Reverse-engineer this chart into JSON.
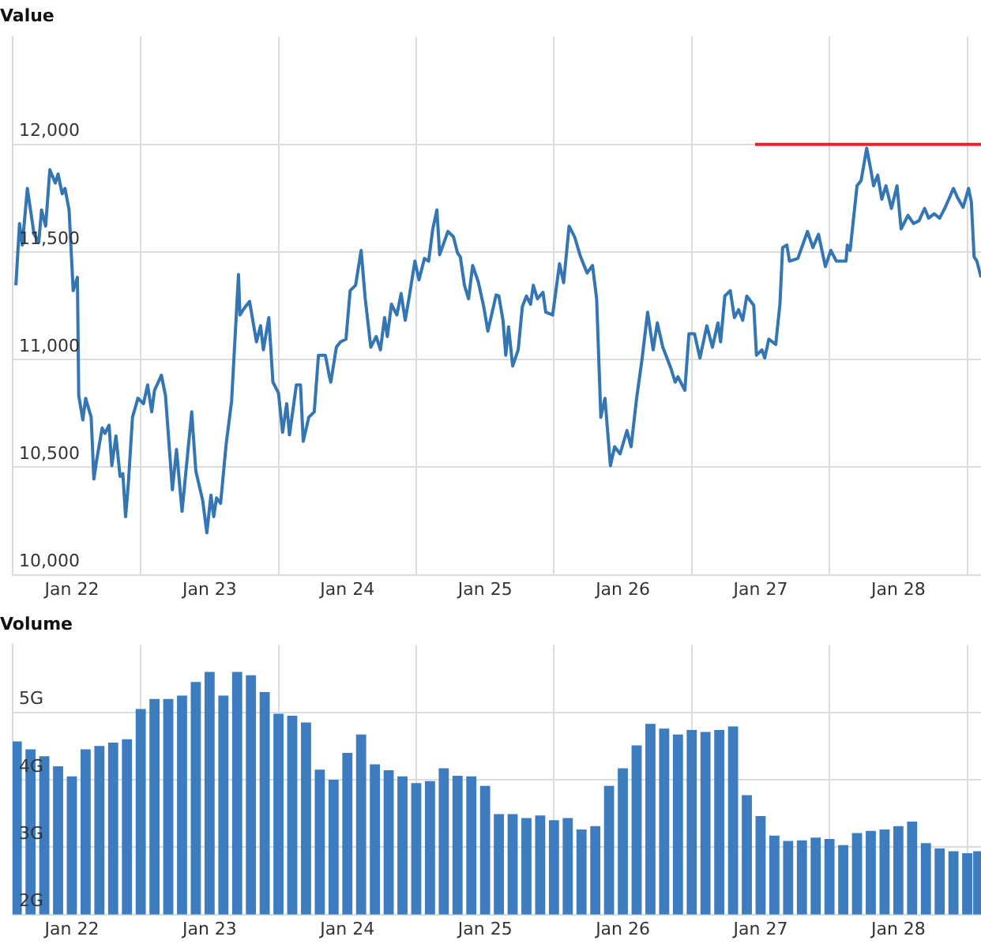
{
  "chart_data": [
    {
      "type": "line",
      "title": "Value",
      "xlim": [
        "--01-22T01:41",
        "--01-29T02:24"
      ],
      "ylim": [
        10000,
        12500
      ],
      "xticks": [
        {
          "value": "--01-22T12:00",
          "label": "Jan 22"
        },
        {
          "value": "--01-23",
          "label": null
        },
        {
          "value": "--01-23T12:00",
          "label": "Jan 23"
        },
        {
          "value": "--01-24",
          "label": null
        },
        {
          "value": "--01-24T12:00",
          "label": "Jan 24"
        },
        {
          "value": "--01-25",
          "label": null
        },
        {
          "value": "--01-25T12:00",
          "label": "Jan 25"
        },
        {
          "value": "--01-26",
          "label": null
        },
        {
          "value": "--01-26T12:00",
          "label": "Jan 26"
        },
        {
          "value": "--01-27",
          "label": null
        },
        {
          "value": "--01-27T12:00",
          "label": "Jan 27"
        },
        {
          "value": "--01-28",
          "label": null
        },
        {
          "value": "--01-28T12:00",
          "label": "Jan 28"
        },
        {
          "value": "--01-29",
          "label": null
        }
      ],
      "yticks": [
        {
          "value": 10000,
          "label": "10,000"
        },
        {
          "value": 10500,
          "label": "10,500"
        },
        {
          "value": 11000,
          "label": "11,000"
        },
        {
          "value": 11500,
          "label": "11,500"
        },
        {
          "value": 12000,
          "label": "12,000"
        }
      ],
      "grid": true,
      "legend": false,
      "marker": "none",
      "line_style": "solid",
      "series": [
        {
          "color": "#3475b3",
          "x": [
            "--01-22T02:15",
            "--01-22T02:53",
            "--01-22T03:22",
            "--01-22T04:15",
            "--01-22T05:25",
            "--01-22T06:14",
            "--01-22T06:43",
            "--01-22T07:26",
            "--01-22T08:10",
            "--01-22T09:07",
            "--01-22T09:36",
            "--01-22T10:19",
            "--01-22T10:48",
            "--01-22T11:31",
            "--01-22T12:14",
            "--01-22T12:58",
            "--01-22T13:12",
            "--01-22T13:55",
            "--01-22T14:24",
            "--01-22T15:22",
            "--01-22T15:50",
            "--01-22T16:19",
            "--01-22T17:17",
            "--01-22T17:46",
            "--01-22T18:29",
            "--01-22T18:58",
            "--01-22T19:41",
            "--01-22T20:24",
            "--01-22T20:53",
            "--01-22T21:22",
            "--01-22T21:50",
            "--01-22T22:34",
            "--01-22T23:31",
            "--01-23T00:29",
            "--01-23T01:12",
            "--01-23T01:55",
            "--01-23T02:24",
            "--01-23T03:36",
            "--01-23T04:19",
            "--01-23T05:31",
            "--01-23T06:14",
            "--01-23T07:12",
            "--01-23T08:53",
            "--01-23T09:36",
            "--01-23T10:48",
            "--01-23T11:31",
            "--01-23T12:14",
            "--01-23T12:43",
            "--01-23T13:12",
            "--01-23T13:55",
            "--01-23T14:53",
            "--01-23T15:50",
            "--01-23T17:02",
            "--01-23T17:17",
            "--01-23T18:00",
            "--01-23T18:58",
            "--01-23T20:10",
            "--01-23T20:53",
            "--01-23T21:22",
            "--01-23T22:19",
            "--01-23T23:02",
            "--01-24T00:00",
            "--01-24T00:43",
            "--01-24T01:26",
            "--01-24T01:55",
            "--01-24T03:07",
            "--01-24T03:50",
            "--01-24T04:19",
            "--01-24T05:17",
            "--01-24T06:14",
            "--01-24T06:58",
            "--01-24T08:10",
            "--01-24T08:53",
            "--01-24T09:07",
            "--01-24T10:05",
            "--01-24T10:48",
            "--01-24T11:46",
            "--01-24T12:29",
            "--01-24T13:26",
            "--01-24T14:24",
            "--01-24T15:07",
            "--01-24T16:05",
            "--01-24T17:02",
            "--01-24T17:46",
            "--01-24T18:29",
            "--01-24T18:58",
            "--01-24T19:41",
            "--01-24T20:38",
            "--01-24T21:22",
            "--01-24T22:05",
            "--01-24T22:48",
            "--01-24T23:46",
            "--01-25T00:29",
            "--01-25T01:26",
            "--01-25T02:10",
            "--01-25T02:53",
            "--01-25T03:36",
            "--01-25T04:05",
            "--01-25T05:31",
            "--01-25T06:29",
            "--01-25T07:12",
            "--01-25T07:41",
            "--01-25T08:24",
            "--01-25T09:07",
            "--01-25T09:50",
            "--01-25T10:48",
            "--01-25T11:46",
            "--01-25T12:29",
            "--01-25T13:55",
            "--01-25T14:24",
            "--01-25T15:07",
            "--01-25T15:36",
            "--01-25T16:05",
            "--01-25T16:48",
            "--01-25T17:46",
            "--01-25T18:29",
            "--01-25T19:12",
            "--01-25T19:55",
            "--01-25T20:24",
            "--01-25T21:07",
            "--01-25T22:05",
            "--01-25T22:34",
            "--01-25T23:46",
            "--01-26T00:58",
            "--01-26T01:41",
            "--01-26T02:38",
            "--01-26T03:36",
            "--01-26T04:34",
            "--01-26T05:46",
            "--01-26T06:43",
            "--01-26T07:26",
            "--01-26T08:10",
            "--01-26T08:53",
            "--01-26T09:50",
            "--01-26T10:34",
            "--01-26T11:31",
            "--01-26T12:43",
            "--01-26T13:26",
            "--01-26T14:24",
            "--01-26T15:22",
            "--01-26T16:19",
            "--01-26T17:17",
            "--01-26T18:00",
            "--01-26T18:58",
            "--01-26T20:24",
            "--01-26T21:07",
            "--01-26T21:36",
            "--01-26T22:48",
            "--01-26T23:31",
            "--01-27T00:29",
            "--01-27T01:26",
            "--01-27T02:38",
            "--01-27T03:36",
            "--01-27T04:34",
            "--01-27T05:02",
            "--01-27T05:46",
            "--01-27T06:43",
            "--01-27T07:26",
            "--01-27T08:10",
            "--01-27T08:53",
            "--01-27T09:36",
            "--01-27T10:48",
            "--01-27T11:17",
            "--01-27T12:14",
            "--01-27T12:43",
            "--01-27T13:26",
            "--01-27T14:38",
            "--01-27T15:22",
            "--01-27T15:50",
            "--01-27T16:34",
            "--01-27T17:02",
            "--01-27T18:29",
            "--01-27T20:10",
            "--01-27T21:07",
            "--01-27T22:05",
            "--01-27T23:17",
            "--01-28T00:14",
            "--01-28T01:12",
            "--01-28T02:53",
            "--01-28T03:07",
            "--01-28T03:36",
            "--01-28T04:48",
            "--01-28T05:31",
            "--01-28T06:29",
            "--01-28T07:12",
            "--01-28T07:41",
            "--01-28T08:24",
            "--01-28T09:07",
            "--01-28T09:50",
            "--01-28T10:48",
            "--01-28T11:46",
            "--01-28T12:29",
            "--01-28T13:41",
            "--01-28T14:38",
            "--01-28T15:36",
            "--01-28T16:34",
            "--01-28T17:17",
            "--01-28T18:14",
            "--01-28T19:12",
            "--01-28T20:10",
            "--01-28T21:36",
            "--01-28T22:19",
            "--01-28T23:17",
            "--01-29T00:14",
            "--01-29T00:43",
            "--01-29T01:12",
            "--01-29T01:41",
            "--01-29T02:24"
          ],
          "values": [
            11345,
            11632,
            11532,
            11795,
            11582,
            11545,
            11695,
            11620,
            11882,
            11820,
            11862,
            11770,
            11795,
            11695,
            11320,
            11382,
            10832,
            10720,
            10820,
            10732,
            10445,
            10532,
            10682,
            10657,
            10695,
            10507,
            10645,
            10457,
            10470,
            10270,
            10420,
            10732,
            10820,
            10795,
            10882,
            10757,
            10857,
            10927,
            10832,
            10395,
            10582,
            10295,
            10757,
            10482,
            10345,
            10195,
            10370,
            10270,
            10357,
            10332,
            10607,
            10807,
            11395,
            11207,
            11237,
            11270,
            11082,
            11157,
            11045,
            11195,
            10895,
            10845,
            10662,
            10795,
            10650,
            10882,
            10882,
            10620,
            10732,
            10757,
            11020,
            11020,
            10920,
            10895,
            11057,
            11082,
            11095,
            11320,
            11345,
            11507,
            11282,
            11057,
            11107,
            11045,
            11195,
            11107,
            11257,
            11207,
            11307,
            11182,
            11295,
            11457,
            11370,
            11470,
            11457,
            11607,
            11695,
            11487,
            11595,
            11570,
            11495,
            11477,
            11345,
            11282,
            11437,
            11362,
            11245,
            11132,
            11300,
            11295,
            11182,
            11020,
            11152,
            10970,
            11045,
            11245,
            11295,
            11257,
            11345,
            11282,
            11312,
            11220,
            11207,
            11445,
            11357,
            11620,
            11570,
            11482,
            11402,
            11437,
            11282,
            10732,
            10820,
            10507,
            10595,
            10562,
            10670,
            10595,
            10820,
            11007,
            11220,
            11045,
            11170,
            11057,
            10957,
            10895,
            10920,
            10857,
            11120,
            11120,
            11007,
            11157,
            11057,
            11170,
            11082,
            11295,
            11320,
            11195,
            11232,
            11182,
            11295,
            11252,
            11020,
            11045,
            11007,
            11095,
            11070,
            11257,
            11520,
            11532,
            11457,
            11470,
            11595,
            11520,
            11582,
            11432,
            11507,
            11457,
            11457,
            11532,
            11507,
            11807,
            11832,
            11982,
            11882,
            11807,
            11857,
            11745,
            11807,
            11702,
            11807,
            11607,
            11670,
            11632,
            11645,
            11702,
            11657,
            11677,
            11657,
            11707,
            11795,
            11752,
            11707,
            11795,
            11732,
            11477,
            11457,
            11382
          ]
        },
        {
          "type": "line",
          "color": "#e3262b",
          "x": [
            "--01-27T11:02",
            "--01-29T02:24"
          ],
          "values": [
            12000,
            12000
          ]
        }
      ]
    },
    {
      "type": "bar",
      "title": "Volume",
      "xlim": [
        "--01-22T01:41",
        "--01-29T02:24"
      ],
      "ylim": [
        2,
        6
      ],
      "xticks": [
        {
          "value": "--01-22T12:00",
          "label": "Jan 22"
        },
        {
          "value": "--01-23",
          "label": null
        },
        {
          "value": "--01-23T12:00",
          "label": "Jan 23"
        },
        {
          "value": "--01-24",
          "label": null
        },
        {
          "value": "--01-24T12:00",
          "label": "Jan 24"
        },
        {
          "value": "--01-25",
          "label": null
        },
        {
          "value": "--01-25T12:00",
          "label": "Jan 25"
        },
        {
          "value": "--01-26",
          "label": null
        },
        {
          "value": "--01-26T12:00",
          "label": "Jan 26"
        },
        {
          "value": "--01-27",
          "label": null
        },
        {
          "value": "--01-27T12:00",
          "label": "Jan 27"
        },
        {
          "value": "--01-28",
          "label": null
        },
        {
          "value": "--01-28T12:00",
          "label": "Jan 28"
        },
        {
          "value": "--01-29",
          "label": null
        }
      ],
      "yticks": [
        {
          "value": 2,
          "label": "2G"
        },
        {
          "value": 3,
          "label": "3G"
        },
        {
          "value": 4,
          "label": "4G"
        },
        {
          "value": 5,
          "label": "5G"
        }
      ],
      "grid": true,
      "legend": false,
      "series": [
        {
          "color": "#3d7dbf",
          "x": [
            "--01-22T02:24",
            "--01-22T04:48",
            "--01-22T07:12",
            "--01-22T09:36",
            "--01-22T12:00",
            "--01-22T14:24",
            "--01-22T16:48",
            "--01-22T19:12",
            "--01-22T21:36",
            "--01-23T00:00",
            "--01-23T02:24",
            "--01-23T04:48",
            "--01-23T07:12",
            "--01-23T09:36",
            "--01-23T12:00",
            "--01-23T14:24",
            "--01-23T16:48",
            "--01-23T19:12",
            "--01-23T21:36",
            "--01-24T00:00",
            "--01-24T02:24",
            "--01-24T04:48",
            "--01-24T07:12",
            "--01-24T09:36",
            "--01-24T12:00",
            "--01-24T14:24",
            "--01-24T16:48",
            "--01-24T19:12",
            "--01-24T21:36",
            "--01-25T00:00",
            "--01-25T02:24",
            "--01-25T04:48",
            "--01-25T07:12",
            "--01-25T09:36",
            "--01-25T12:00",
            "--01-25T14:24",
            "--01-25T16:48",
            "--01-25T19:12",
            "--01-25T21:36",
            "--01-26T00:00",
            "--01-26T02:24",
            "--01-26T04:48",
            "--01-26T07:12",
            "--01-26T09:36",
            "--01-26T12:00",
            "--01-26T14:24",
            "--01-26T16:48",
            "--01-26T19:12",
            "--01-26T21:36",
            "--01-27T00:00",
            "--01-27T02:24",
            "--01-27T04:48",
            "--01-27T07:12",
            "--01-27T09:36",
            "--01-27T12:00",
            "--01-27T14:24",
            "--01-27T16:48",
            "--01-27T19:12",
            "--01-27T21:36",
            "--01-28T00:00",
            "--01-28T02:24",
            "--01-28T04:48",
            "--01-28T07:12",
            "--01-28T09:36",
            "--01-28T12:00",
            "--01-28T14:24",
            "--01-28T16:48",
            "--01-28T19:12",
            "--01-28T21:36",
            "--01-29T00:00",
            "--01-29T01:55"
          ],
          "values": [
            4.57,
            4.45,
            4.35,
            4.2,
            4.05,
            4.45,
            4.5,
            4.55,
            4.6,
            5.05,
            5.2,
            5.2,
            5.25,
            5.45,
            5.6,
            5.25,
            5.6,
            5.55,
            5.3,
            4.98,
            4.95,
            4.85,
            4.15,
            4,
            4.4,
            4.67,
            4.23,
            4.14,
            4.05,
            3.95,
            3.98,
            4.17,
            4.06,
            4.05,
            3.91,
            3.49,
            3.49,
            3.43,
            3.47,
            3.4,
            3.43,
            3.26,
            3.31,
            3.91,
            4.17,
            4.51,
            4.83,
            4.76,
            4.67,
            4.74,
            4.71,
            4.74,
            4.79,
            3.77,
            3.46,
            3.17,
            3.09,
            3.1,
            3.14,
            3.12,
            3.03,
            3.21,
            3.24,
            3.26,
            3.31,
            3.38,
            3.06,
            2.98,
            2.94,
            2.91,
            2.94
          ]
        }
      ]
    }
  ]
}
